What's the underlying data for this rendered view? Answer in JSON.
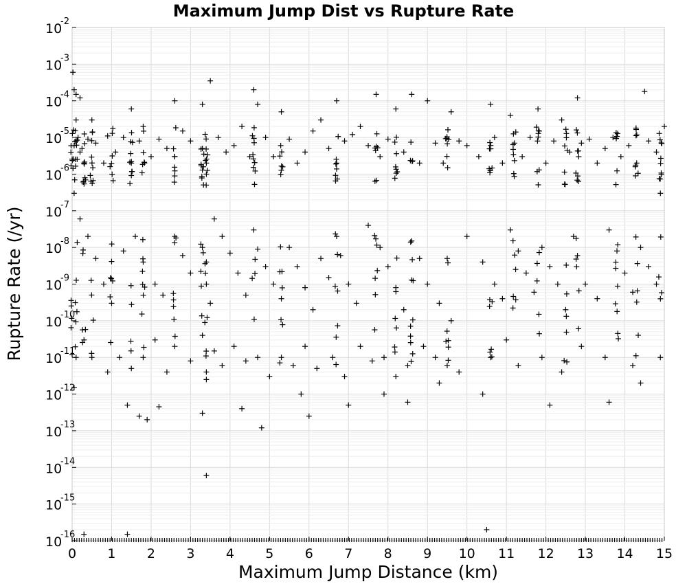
{
  "chart_data": {
    "type": "scatter",
    "title": "Maximum Jump Dist vs Rupture Rate",
    "xlabel": "Maximum Jump Distance (km)",
    "ylabel": "Rupture Rate (/yr)",
    "xlim": [
      0,
      15
    ],
    "ylim": [
      1e-16,
      0.01
    ],
    "yscale": "log",
    "grid": true,
    "legend": "none",
    "marker": "plus",
    "marker_color": "#000000",
    "x_ticks": [
      "0",
      "1",
      "2",
      "3",
      "4",
      "5",
      "6",
      "7",
      "8",
      "9",
      "10",
      "11",
      "12",
      "13",
      "14",
      "15"
    ],
    "y_tick_exponents": [
      "-16",
      "-15",
      "-14",
      "-13",
      "-12",
      "-11",
      "-10",
      "-9",
      "-8",
      "-7",
      "-6",
      "-5",
      "-4",
      "-3",
      "-2"
    ],
    "y_tick_base": "10",
    "point_columns": [
      0,
      0.1,
      0.3,
      0.5,
      1.0,
      1.5,
      1.8,
      2.6,
      3.3,
      3.4,
      4.6,
      5.3,
      6.7,
      7.7,
      8.2,
      8.6,
      9.5,
      10.6,
      11.2,
      11.8,
      12.5,
      12.8,
      13.8,
      14.3,
      14.9
    ],
    "series": [
      {
        "name": "",
        "points": [
          [
            0.02,
            0.0006
          ],
          [
            0.05,
            0.0002
          ],
          [
            0.1,
            0.00015
          ],
          [
            0.2,
            0.00012
          ],
          [
            0.1,
            3e-05
          ],
          [
            0.15,
            1e-05
          ],
          [
            0.05,
            6e-06
          ],
          [
            0.2,
            4e-06
          ],
          [
            0.3,
            2e-06
          ],
          [
            0.1,
            8e-06
          ],
          [
            0.25,
            5e-06
          ],
          [
            0.4,
            9e-06
          ],
          [
            0.5,
            3e-05
          ],
          [
            0.6,
            7e-06
          ],
          [
            0.8,
            2e-06
          ],
          [
            0.9,
            1.1e-05
          ],
          [
            1.1,
            4e-06
          ],
          [
            1.3,
            1e-05
          ],
          [
            1.5,
            2e-06
          ],
          [
            1.5,
            6e-05
          ],
          [
            1.7,
            8e-06
          ],
          [
            1.8,
            2e-05
          ],
          [
            2.0,
            3e-06
          ],
          [
            2.2,
            9e-06
          ],
          [
            2.4,
            5e-06
          ],
          [
            2.6,
            0.0001
          ],
          [
            2.6,
            3e-06
          ],
          [
            2.8,
            1.5e-05
          ],
          [
            3.0,
            8e-06
          ],
          [
            3.3,
            8e-05
          ],
          [
            3.3,
            5e-06
          ],
          [
            3.4,
            1e-06
          ],
          [
            3.5,
            0.00035
          ],
          [
            3.4,
            2e-06
          ],
          [
            3.7,
            1e-05
          ],
          [
            3.9,
            4e-06
          ],
          [
            4.1,
            6e-06
          ],
          [
            4.3,
            2e-05
          ],
          [
            4.5,
            3e-06
          ],
          [
            4.6,
            0.0002
          ],
          [
            4.7,
            8e-05
          ],
          [
            4.9,
            1e-05
          ],
          [
            5.1,
            3e-06
          ],
          [
            5.3,
            5e-05
          ],
          [
            5.5,
            9e-06
          ],
          [
            5.7,
            2e-06
          ],
          [
            5.9,
            4e-06
          ],
          [
            6.1,
            1.5e-05
          ],
          [
            6.3,
            3e-05
          ],
          [
            6.5,
            5e-06
          ],
          [
            6.7,
            0.0001
          ],
          [
            6.7,
            2e-06
          ],
          [
            6.9,
            8e-06
          ],
          [
            7.1,
            1.2e-05
          ],
          [
            7.3,
            2e-05
          ],
          [
            7.5,
            6e-06
          ],
          [
            7.7,
            0.00015
          ],
          [
            7.8,
            3e-06
          ],
          [
            8.0,
            9e-06
          ],
          [
            8.2,
            6e-05
          ],
          [
            8.4,
            4e-06
          ],
          [
            8.6,
            0.00015
          ],
          [
            8.8,
            2e-06
          ],
          [
            9.0,
            0.0001
          ],
          [
            9.2,
            7e-06
          ],
          [
            9.4,
            2e-06
          ],
          [
            9.6,
            5e-05
          ],
          [
            9.8,
            8e-06
          ],
          [
            10.0,
            6e-06
          ],
          [
            10.3,
            3e-06
          ],
          [
            10.6,
            8e-05
          ],
          [
            10.7,
            1e-05
          ],
          [
            10.9,
            2e-06
          ],
          [
            11.1,
            4e-05
          ],
          [
            11.2,
            7e-06
          ],
          [
            11.4,
            3e-06
          ],
          [
            11.6,
            1e-05
          ],
          [
            11.8,
            6e-05
          ],
          [
            12.0,
            2e-06
          ],
          [
            12.2,
            8e-06
          ],
          [
            12.4,
            3e-05
          ],
          [
            12.6,
            4e-06
          ],
          [
            12.8,
            0.00012
          ],
          [
            12.9,
            7e-06
          ],
          [
            13.1,
            9e-06
          ],
          [
            13.3,
            2e-06
          ],
          [
            13.5,
            5e-06
          ],
          [
            13.7,
            1e-05
          ],
          [
            13.9,
            3e-06
          ],
          [
            14.1,
            6e-06
          ],
          [
            14.3,
            2e-06
          ],
          [
            14.5,
            0.00018
          ],
          [
            14.6,
            8e-06
          ],
          [
            14.8,
            4e-06
          ],
          [
            15.0,
            2e-05
          ],
          [
            14.9,
            3e-07
          ],
          [
            0.05,
            3e-07
          ],
          [
            0.2,
            6e-08
          ],
          [
            0.4,
            2e-08
          ],
          [
            0.6,
            5e-09
          ],
          [
            0.8,
            1e-09
          ],
          [
            1.0,
            3e-10
          ],
          [
            1.3,
            8e-09
          ],
          [
            1.6,
            2e-08
          ],
          [
            1.8,
            4e-09
          ],
          [
            2.1,
            1e-09
          ],
          [
            2.3,
            5e-10
          ],
          [
            2.6,
            2e-08
          ],
          [
            2.8,
            6e-09
          ],
          [
            3.0,
            2e-09
          ],
          [
            3.3,
            1e-08
          ],
          [
            3.4,
            4e-09
          ],
          [
            3.4,
            1e-09
          ],
          [
            3.5,
            3e-10
          ],
          [
            3.6,
            6e-08
          ],
          [
            3.8,
            2e-08
          ],
          [
            4.0,
            7e-09
          ],
          [
            4.2,
            2e-09
          ],
          [
            4.4,
            5e-10
          ],
          [
            4.6,
            3e-08
          ],
          [
            4.7,
            9e-09
          ],
          [
            4.9,
            3e-09
          ],
          [
            5.1,
            1e-09
          ],
          [
            5.3,
            4e-10
          ],
          [
            5.5,
            1e-08
          ],
          [
            5.7,
            3e-09
          ],
          [
            5.9,
            8e-10
          ],
          [
            6.1,
            2e-10
          ],
          [
            6.3,
            5e-09
          ],
          [
            6.5,
            1.5e-09
          ],
          [
            6.7,
            2e-08
          ],
          [
            6.8,
            6e-09
          ],
          [
            7.0,
            1e-09
          ],
          [
            7.2,
            3e-10
          ],
          [
            7.5,
            4e-08
          ],
          [
            7.8,
            1e-08
          ],
          [
            8.0,
            3e-09
          ],
          [
            8.2,
            8e-10
          ],
          [
            8.4,
            2e-10
          ],
          [
            8.6,
            1.5e-08
          ],
          [
            8.8,
            5e-09
          ],
          [
            9.0,
            1e-09
          ],
          [
            9.3,
            3e-10
          ],
          [
            9.5,
            5e-09
          ],
          [
            9.6,
            1e-10
          ],
          [
            10.0,
            2e-08
          ],
          [
            10.4,
            4e-09
          ],
          [
            10.7,
            1e-09
          ],
          [
            10.9,
            4e-10
          ],
          [
            11.1,
            3e-08
          ],
          [
            11.3,
            8e-09
          ],
          [
            11.5,
            2e-09
          ],
          [
            11.7,
            6e-10
          ],
          [
            11.9,
            1e-08
          ],
          [
            12.1,
            3e-09
          ],
          [
            12.3,
            1e-09
          ],
          [
            12.5,
            2e-10
          ],
          [
            12.7,
            2e-08
          ],
          [
            12.8,
            6e-09
          ],
          [
            13.0,
            1e-09
          ],
          [
            13.3,
            4e-10
          ],
          [
            13.6,
            3e-08
          ],
          [
            13.8,
            8e-09
          ],
          [
            14.0,
            2e-09
          ],
          [
            14.2,
            6e-10
          ],
          [
            14.4,
            1e-08
          ],
          [
            14.6,
            3e-09
          ],
          [
            14.8,
            1e-09
          ],
          [
            0.1,
            1e-11
          ],
          [
            0.3,
            3e-11
          ],
          [
            0.5,
            1e-11
          ],
          [
            0.9,
            4e-12
          ],
          [
            1.2,
            1e-11
          ],
          [
            1.5,
            5e-12
          ],
          [
            1.8,
            1e-11
          ],
          [
            2.1,
            3e-11
          ],
          [
            2.4,
            4e-12
          ],
          [
            2.6,
            2e-11
          ],
          [
            3.0,
            8e-12
          ],
          [
            3.3,
            4e-11
          ],
          [
            3.4,
            4e-12
          ],
          [
            3.6,
            1.5e-11
          ],
          [
            3.8,
            6e-12
          ],
          [
            4.1,
            2e-11
          ],
          [
            4.4,
            8e-12
          ],
          [
            4.7,
            1e-11
          ],
          [
            5.0,
            3e-12
          ],
          [
            5.3,
            1e-11
          ],
          [
            5.6,
            6e-12
          ],
          [
            5.9,
            2e-11
          ],
          [
            6.2,
            5e-12
          ],
          [
            6.6,
            1e-11
          ],
          [
            6.9,
            3e-12
          ],
          [
            7.3,
            2e-11
          ],
          [
            7.6,
            8e-12
          ],
          [
            7.9,
            1e-11
          ],
          [
            8.2,
            3e-12
          ],
          [
            8.5,
            6e-12
          ],
          [
            8.9,
            2e-11
          ],
          [
            9.2,
            1e-11
          ],
          [
            9.5,
            6e-12
          ],
          [
            9.8,
            4e-12
          ],
          [
            10.6,
            1e-11
          ],
          [
            11.0,
            3e-11
          ],
          [
            11.3,
            6e-12
          ],
          [
            11.9,
            1e-11
          ],
          [
            12.4,
            4e-12
          ],
          [
            12.9,
            2e-11
          ],
          [
            13.5,
            1e-11
          ],
          [
            14.2,
            6e-12
          ],
          [
            14.9,
            1e-11
          ],
          [
            0.05,
            1.5e-12
          ],
          [
            1.4,
            5e-13
          ],
          [
            1.7,
            2.5e-13
          ],
          [
            1.9,
            2e-13
          ],
          [
            2.2,
            4.5e-13
          ],
          [
            3.3,
            3e-13
          ],
          [
            3.4,
            2.5e-12
          ],
          [
            4.3,
            4e-13
          ],
          [
            4.8,
            1.2e-13
          ],
          [
            5.8,
            1e-12
          ],
          [
            6.0,
            2.5e-13
          ],
          [
            7.0,
            5e-13
          ],
          [
            7.9,
            1e-12
          ],
          [
            8.5,
            6e-13
          ],
          [
            9.3,
            2e-12
          ],
          [
            10.4,
            1e-12
          ],
          [
            12.1,
            5e-13
          ],
          [
            13.6,
            6e-13
          ],
          [
            14.4,
            2e-12
          ],
          [
            3.4,
            6e-15
          ],
          [
            10.5,
            2e-16
          ],
          [
            0.3,
            1.5e-16
          ],
          [
            1.4,
            1.5e-16
          ]
        ]
      }
    ],
    "floor_markers_at": 1e-16
  }
}
